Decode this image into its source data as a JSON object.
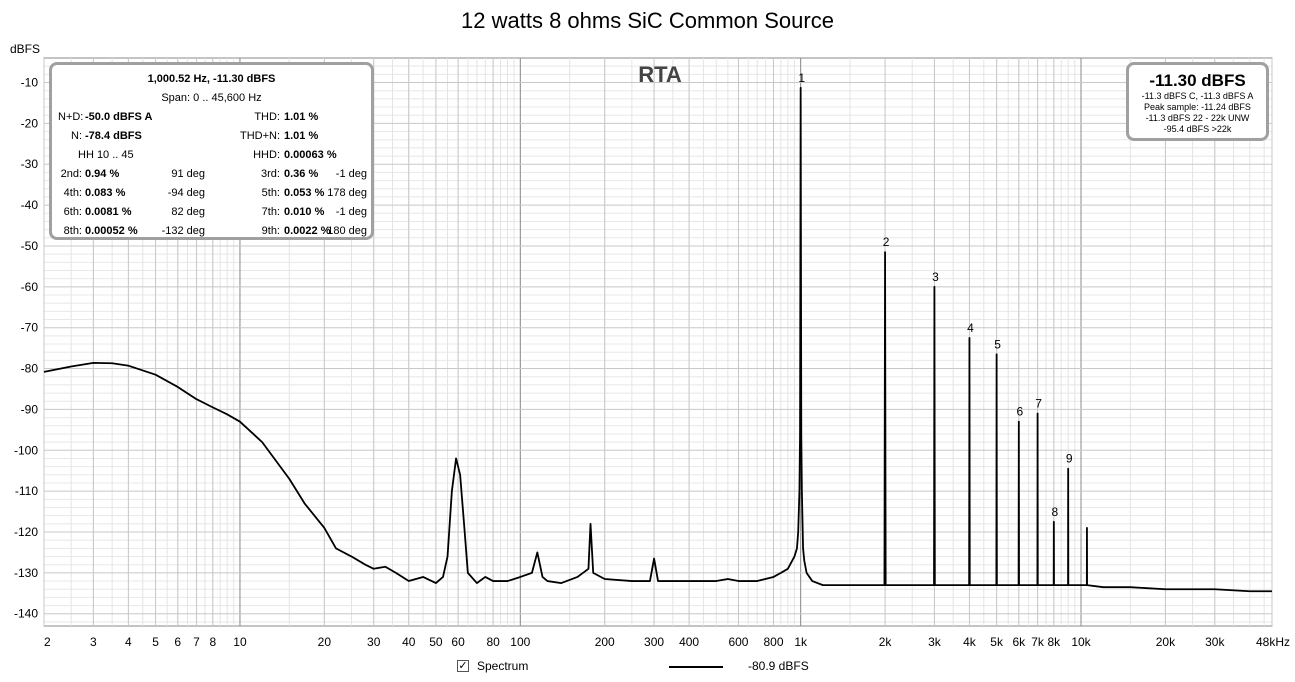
{
  "title": "12 watts 8 ohms SiC Common Source",
  "rta_label": "RTA",
  "info": {
    "header": "1,000.52 Hz, -11.30 dBFS",
    "span": "Span: 0 .. 45,600 Hz",
    "nd_label": "N+D:",
    "nd_value": "-50.0 dBFS A",
    "thd_label": "THD:",
    "thd_value": "1.01 %",
    "n_label": "N:",
    "n_value": "-78.4 dBFS",
    "thdn_label": "THD+N:",
    "thdn_value": "1.01 %",
    "hh_label": "HH 10 .. 45",
    "hhd_label": "HHD:",
    "hhd_value": "0.00063 %",
    "harmonics": [
      {
        "l1": "2nd:",
        "v1": "0.94 %",
        "p1": "91 deg",
        "l2": "3rd:",
        "v2": "0.36 %",
        "p2": "-1 deg"
      },
      {
        "l1": "4th:",
        "v1": "0.083 %",
        "p1": "-94 deg",
        "l2": "5th:",
        "v2": "0.053 %",
        "p2": "178 deg"
      },
      {
        "l1": "6th:",
        "v1": "0.0081 %",
        "p1": "82 deg",
        "l2": "7th:",
        "v2": "0.010 %",
        "p2": "-1 deg"
      },
      {
        "l1": "8th:",
        "v1": "0.00052 %",
        "p1": "-132 deg",
        "l2": "9th:",
        "v2": "0.0022 %",
        "p2": "180 deg"
      }
    ]
  },
  "level": {
    "main": "-11.30 dBFS",
    "line1": "-11.3 dBFS C, -11.3 dBFS A",
    "line2": "Peak sample: -11.24 dBFS",
    "line3": "-11.3 dBFS 22 - 22k UNW",
    "line4": "-95.4 dBFS >22k"
  },
  "legend": {
    "series_label": "Spectrum",
    "checkbox_mark": "✓",
    "value_label": "-80.9 dBFS"
  },
  "chart_data": {
    "type": "line",
    "title": "12 watts 8 ohms SiC Common Source",
    "ylabel": "dBFS",
    "xlabel": "",
    "xscale": "log",
    "xlim": [
      2,
      48000
    ],
    "ylim": [
      -143,
      -4
    ],
    "yticks": [
      -10,
      -20,
      -30,
      -40,
      -50,
      -60,
      -70,
      -80,
      -90,
      -100,
      -110,
      -120,
      -130,
      -140
    ],
    "xticks": [
      {
        "v": 2,
        "l": "2"
      },
      {
        "v": 3,
        "l": "3"
      },
      {
        "v": 4,
        "l": "4"
      },
      {
        "v": 5,
        "l": "5"
      },
      {
        "v": 6,
        "l": "6"
      },
      {
        "v": 7,
        "l": "7"
      },
      {
        "v": 8,
        "l": "8"
      },
      {
        "v": 10,
        "l": "10"
      },
      {
        "v": 20,
        "l": "20"
      },
      {
        "v": 30,
        "l": "30"
      },
      {
        "v": 40,
        "l": "40"
      },
      {
        "v": 50,
        "l": "50"
      },
      {
        "v": 60,
        "l": "60"
      },
      {
        "v": 80,
        "l": "80"
      },
      {
        "v": 100,
        "l": "100"
      },
      {
        "v": 200,
        "l": "200"
      },
      {
        "v": 300,
        "l": "300"
      },
      {
        "v": 400,
        "l": "400"
      },
      {
        "v": 600,
        "l": "600"
      },
      {
        "v": 800,
        "l": "800"
      },
      {
        "v": 1000,
        "l": "1k"
      },
      {
        "v": 2000,
        "l": "2k"
      },
      {
        "v": 3000,
        "l": "3k"
      },
      {
        "v": 4000,
        "l": "4k"
      },
      {
        "v": 5000,
        "l": "5k"
      },
      {
        "v": 6000,
        "l": "6k"
      },
      {
        "v": 7000,
        "l": "7k"
      },
      {
        "v": 8000,
        "l": "8k"
      },
      {
        "v": 10000,
        "l": "10k"
      },
      {
        "v": 20000,
        "l": "20k"
      },
      {
        "v": 30000,
        "l": "30k"
      },
      {
        "v": 48000,
        "l": "48kHz"
      }
    ],
    "grid": true,
    "series": [
      {
        "name": "Spectrum",
        "x": [
          2,
          2.5,
          3,
          3.5,
          4,
          5,
          6,
          7,
          8,
          9,
          10,
          12,
          15,
          17,
          20,
          22,
          25,
          28,
          30,
          33,
          36,
          40,
          45,
          50,
          53,
          55,
          57,
          59,
          61,
          63,
          65,
          70,
          75,
          80,
          90,
          100,
          110,
          115,
          120,
          125,
          140,
          160,
          175,
          178,
          182,
          200,
          250,
          290,
          300,
          310,
          350,
          400,
          450,
          500,
          550,
          600,
          700,
          800,
          850,
          900,
          950,
          970,
          980,
          990,
          995,
          1000,
          1005,
          1010,
          1020,
          1030,
          1050,
          1100,
          1200,
          1500,
          1800,
          1990,
          2000,
          2010,
          2200,
          2600,
          2990,
          3000,
          3010,
          3500,
          3990,
          4000,
          4010,
          4500,
          4990,
          5000,
          5010,
          5500,
          5990,
          6000,
          6010,
          6500,
          6990,
          7000,
          7010,
          7500,
          7990,
          8000,
          8010,
          8500,
          8990,
          9000,
          9010,
          9500,
          10490,
          10500,
          10510,
          12000,
          15000,
          20000,
          25000,
          30000,
          40000,
          48000
        ],
        "y": [
          -80.8,
          -79.5,
          -78.6,
          -78.7,
          -79.3,
          -81.5,
          -84.5,
          -87.5,
          -89.5,
          -91.2,
          -93,
          -98,
          -107,
          -113,
          -119,
          -124,
          -126,
          -128,
          -129,
          -128.5,
          -130,
          -132,
          -131,
          -132.5,
          -131,
          -126,
          -110,
          -102,
          -106,
          -118,
          -130,
          -132.5,
          -131,
          -132,
          -132,
          -131,
          -130,
          -125,
          -131,
          -132,
          -132.5,
          -131,
          -129,
          -118,
          -130,
          -131.5,
          -132,
          -132,
          -126.5,
          -132,
          -132,
          -132,
          -132,
          -132,
          -131.5,
          -132,
          -132,
          -131,
          -130,
          -129,
          -126,
          -124,
          -120,
          -110,
          -96,
          -11.3,
          -96,
          -110,
          -124,
          -127,
          -130,
          -132,
          -133,
          -133,
          -133,
          -133,
          -51.5,
          -133,
          -133,
          -133,
          -133,
          -60,
          -133,
          -133,
          -133,
          -72.5,
          -133,
          -133,
          -133,
          -76.5,
          -133,
          -133,
          -133,
          -93,
          -133,
          -133,
          -133,
          -91,
          -133,
          -133,
          -133,
          -117.5,
          -133,
          -133,
          -133,
          -104.5,
          -133,
          -133,
          -133,
          -119,
          -133,
          -133.5,
          -133.5,
          -134,
          -134,
          -134,
          -134.5,
          -134.5
        ]
      }
    ],
    "annotations": [
      {
        "label": "1",
        "x": 1000,
        "y": -11.3
      },
      {
        "label": "2",
        "x": 2000,
        "y": -51.5
      },
      {
        "label": "3",
        "x": 3000,
        "y": -60
      },
      {
        "label": "4",
        "x": 4000,
        "y": -72.5
      },
      {
        "label": "5",
        "x": 5000,
        "y": -76.5
      },
      {
        "label": "6",
        "x": 6000,
        "y": -93
      },
      {
        "label": "7",
        "x": 7000,
        "y": -91
      },
      {
        "label": "8",
        "x": 8000,
        "y": -117.5
      },
      {
        "label": "9",
        "x": 9000,
        "y": -104.5
      }
    ]
  }
}
